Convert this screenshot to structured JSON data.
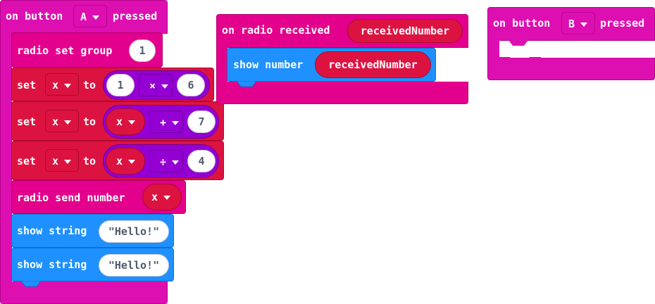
{
  "colors": {
    "event_magenta": "#DD0FB0",
    "radio_pink": "#E3008C",
    "variables_red": "#DC1341",
    "math_purple": "#9400D3",
    "basic_blue": "#1E90FF"
  },
  "event_button_a": {
    "prefix": "on button",
    "button_value": "A",
    "suffix": "pressed",
    "radio_set_group": {
      "label": "radio set group",
      "value": "1"
    },
    "set_blocks": [
      {
        "set": "set",
        "variable": "x",
        "to": "to",
        "left": "1",
        "operator": "×",
        "right": "6"
      },
      {
        "set": "set",
        "variable": "x",
        "to": "to",
        "left": "x",
        "operator": "+",
        "right": "7"
      },
      {
        "set": "set",
        "variable": "x",
        "to": "to",
        "left": "x",
        "operator": "÷",
        "right": "4"
      }
    ],
    "radio_send": {
      "label": "radio send number",
      "variable": "x"
    },
    "show_strings": [
      {
        "label": "show string",
        "value": "\"Hello!\""
      },
      {
        "label": "show string",
        "value": "\"Hello!\""
      }
    ]
  },
  "event_radio": {
    "prefix": "on radio received",
    "param": "receivedNumber",
    "show_number": {
      "label": "show number",
      "value": "receivedNumber"
    }
  },
  "event_button_b": {
    "prefix": "on button",
    "button_value": "B",
    "suffix": "pressed"
  }
}
